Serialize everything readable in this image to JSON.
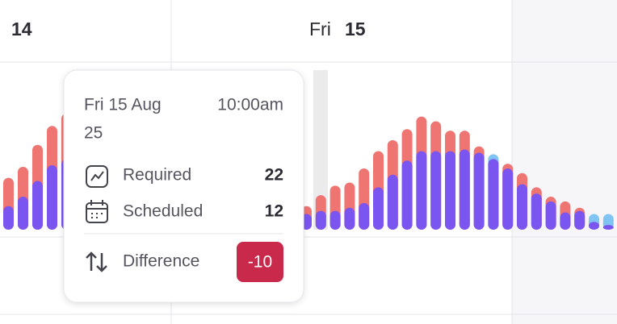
{
  "header": {
    "left_day": "14",
    "right_weekday": "Fri",
    "right_day": "15"
  },
  "chart_data": [
    {
      "type": "bar",
      "series": [
        {
          "color": "#ee7571",
          "values": [
            33,
            40,
            54,
            66,
            74
          ]
        },
        {
          "color": "#7a55f0",
          "values": [
            15,
            21,
            31,
            41,
            45
          ]
        }
      ],
      "over_color": "#7fc4f2"
    },
    {
      "type": "bar",
      "series": [
        {
          "color": "#ee7571",
          "values": [
            15,
            22,
            28,
            30,
            39,
            50,
            57,
            64,
            72,
            69,
            63,
            63,
            53,
            45,
            42,
            36,
            27,
            21,
            18,
            14,
            5,
            3
          ]
        },
        {
          "color": "#7a55f0",
          "values": [
            10,
            12,
            12,
            14,
            17,
            27,
            35,
            44,
            50,
            50,
            50,
            51,
            49,
            48,
            39,
            29,
            23,
            18,
            11,
            12,
            10,
            10
          ]
        }
      ],
      "over_color": "#7fc4f2"
    }
  ],
  "tooltip": {
    "date": "Fri 15 Aug",
    "time": "10:00am",
    "year": "25",
    "rows": [
      {
        "label": "Required",
        "value": 22
      },
      {
        "label": "Scheduled",
        "value": 12
      },
      {
        "label": "Difference",
        "value": -10
      }
    ],
    "badge_color": "#c9294b"
  }
}
